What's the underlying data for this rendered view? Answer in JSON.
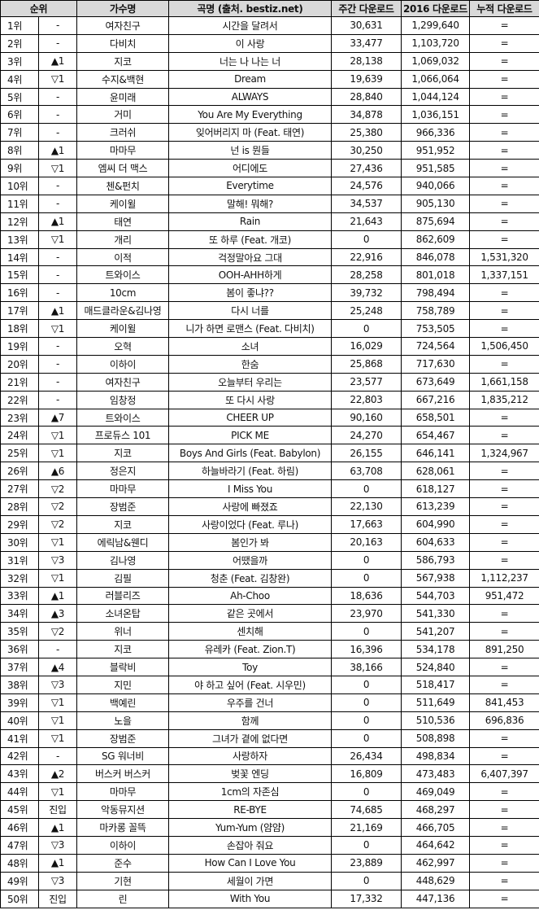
{
  "header": {
    "rank": "순위",
    "artist": "가수명",
    "song": "곡명 (출처. bestiz.net)",
    "weekly": "주간 다운로드",
    "year2016": "2016 다운로드",
    "cumulative": "누적 다운로드"
  },
  "colors": {
    "header_bg": "#d9d9d9",
    "border": "#000000"
  },
  "rows": [
    [
      "1위",
      "-",
      "여자친구",
      "시간을 달려서",
      "30,631",
      "1,299,640",
      "="
    ],
    [
      "2위",
      "-",
      "다비치",
      "이 사랑",
      "33,477",
      "1,103,720",
      "="
    ],
    [
      "3위",
      "▲1",
      "지코",
      "너는 나 나는 너",
      "28,138",
      "1,069,032",
      "="
    ],
    [
      "4위",
      "▽1",
      "수지&백현",
      "Dream",
      "19,639",
      "1,066,064",
      "="
    ],
    [
      "5위",
      "-",
      "윤미래",
      "ALWAYS",
      "28,840",
      "1,044,124",
      "="
    ],
    [
      "6위",
      "-",
      "거미",
      "You Are My Everything",
      "34,878",
      "1,036,151",
      "="
    ],
    [
      "7위",
      "-",
      "크러쉬",
      "잊어버리지 마 (Feat. 태연)",
      "25,380",
      "966,336",
      "="
    ],
    [
      "8위",
      "▲1",
      "마마무",
      "넌 is 뭔들",
      "30,250",
      "951,952",
      "="
    ],
    [
      "9위",
      "▽1",
      "엠씨 더 맥스",
      "어디에도",
      "27,436",
      "951,585",
      "="
    ],
    [
      "10위",
      "-",
      "첸&펀치",
      "Everytime",
      "24,576",
      "940,066",
      "="
    ],
    [
      "11위",
      "-",
      "케이윌",
      "말해! 뭐해?",
      "34,537",
      "905,130",
      "="
    ],
    [
      "12위",
      "▲1",
      "태연",
      "Rain",
      "21,643",
      "875,694",
      "="
    ],
    [
      "13위",
      "▽1",
      "개리",
      "또 하루 (Feat. 개코)",
      "0",
      "862,609",
      "="
    ],
    [
      "14위",
      "-",
      "이적",
      "걱정말아요 그대",
      "22,916",
      "846,078",
      "1,531,320"
    ],
    [
      "15위",
      "-",
      "트와이스",
      "OOH-AHH하게",
      "28,258",
      "801,018",
      "1,337,151"
    ],
    [
      "16위",
      "-",
      "10cm",
      "봄이 좋냐??",
      "39,732",
      "798,494",
      "="
    ],
    [
      "17위",
      "▲1",
      "매드클라운&김나영",
      "다시 너를",
      "25,248",
      "758,789",
      "="
    ],
    [
      "18위",
      "▽1",
      "케이윌",
      "니가 하면 로맨스 (Feat. 다비치)",
      "0",
      "753,505",
      "="
    ],
    [
      "19위",
      "-",
      "오혁",
      "소녀",
      "16,029",
      "724,564",
      "1,506,450"
    ],
    [
      "20위",
      "-",
      "이하이",
      "한숨",
      "25,868",
      "717,630",
      "="
    ],
    [
      "21위",
      "-",
      "여자친구",
      "오늘부터 우리는",
      "23,577",
      "673,649",
      "1,661,158"
    ],
    [
      "22위",
      "-",
      "임창정",
      "또 다시 사랑",
      "22,803",
      "667,216",
      "1,835,212"
    ],
    [
      "23위",
      "▲7",
      "트와이스",
      "CHEER UP",
      "90,160",
      "658,501",
      "="
    ],
    [
      "24위",
      "▽1",
      "프로듀스 101",
      "PICK ME",
      "24,270",
      "654,467",
      "="
    ],
    [
      "25위",
      "▽1",
      "지코",
      "Boys And Girls (Feat. Babylon)",
      "26,155",
      "646,141",
      "1,324,967"
    ],
    [
      "26위",
      "▲6",
      "정은지",
      "하늘바라기 (Feat. 하림)",
      "63,708",
      "628,061",
      "="
    ],
    [
      "27위",
      "▽2",
      "마마무",
      "I Miss You",
      "0",
      "618,127",
      "="
    ],
    [
      "28위",
      "▽2",
      "장범준",
      "사랑에 빠졌죠",
      "22,130",
      "613,239",
      "="
    ],
    [
      "29위",
      "▽2",
      "지코",
      "사랑이었다 (Feat. 루나)",
      "17,663",
      "604,990",
      "="
    ],
    [
      "30위",
      "▽1",
      "에릭남&웬디",
      "봄인가 봐",
      "20,163",
      "604,633",
      "="
    ],
    [
      "31위",
      "▽3",
      "김나영",
      "어땠을까",
      "0",
      "586,793",
      "="
    ],
    [
      "32위",
      "▽1",
      "김필",
      "청춘 (Feat. 김창완)",
      "0",
      "567,938",
      "1,112,237"
    ],
    [
      "33위",
      "▲1",
      "러블리즈",
      "Ah-Choo",
      "18,636",
      "544,703",
      "951,472"
    ],
    [
      "34위",
      "▲3",
      "소녀온탑",
      "같은 곳에서",
      "23,970",
      "541,330",
      "="
    ],
    [
      "35위",
      "▽2",
      "위너",
      "센치해",
      "0",
      "541,207",
      "="
    ],
    [
      "36위",
      "-",
      "지코",
      "유레카 (Feat. Zion.T)",
      "16,396",
      "534,178",
      "891,250"
    ],
    [
      "37위",
      "▲4",
      "블락비",
      "Toy",
      "38,166",
      "524,840",
      "="
    ],
    [
      "38위",
      "▽3",
      "지민",
      "야 하고 싶어 (Feat. 시우민)",
      "0",
      "518,417",
      "="
    ],
    [
      "39위",
      "▽1",
      "백예린",
      "우주를 건너",
      "0",
      "511,649",
      "841,453"
    ],
    [
      "40위",
      "▽1",
      "노을",
      "함께",
      "0",
      "510,536",
      "696,836"
    ],
    [
      "41위",
      "▽1",
      "장범준",
      "그녀가 곁에 없다면",
      "0",
      "508,898",
      "="
    ],
    [
      "42위",
      "-",
      "SG 워너비",
      "사랑하자",
      "26,434",
      "498,834",
      "="
    ],
    [
      "43위",
      "▲2",
      "버스커 버스커",
      "벚꽃 엔딩",
      "16,809",
      "473,483",
      "6,407,397"
    ],
    [
      "44위",
      "▽1",
      "마마무",
      "1cm의 자존심",
      "0",
      "469,049",
      "="
    ],
    [
      "45위",
      "진입",
      "악동뮤지션",
      "RE-BYE",
      "74,685",
      "468,297",
      "="
    ],
    [
      "46위",
      "▲1",
      "마카롱 꼴뜩",
      "Yum-Yum (얌얌)",
      "21,169",
      "466,705",
      "="
    ],
    [
      "47위",
      "▽3",
      "이하이",
      "손잡아 줘요",
      "0",
      "464,642",
      "="
    ],
    [
      "48위",
      "▲1",
      "준수",
      "How Can I Love You",
      "23,889",
      "462,997",
      "="
    ],
    [
      "49위",
      "▽3",
      "기현",
      "세월이 가면",
      "0",
      "448,629",
      "="
    ],
    [
      "50위",
      "진입",
      "린",
      "With You",
      "17,332",
      "447,136",
      "="
    ]
  ]
}
